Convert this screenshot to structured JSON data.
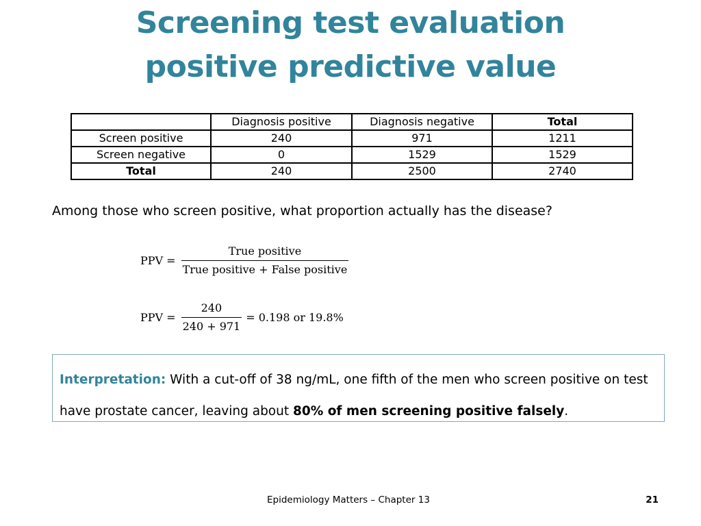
{
  "title": {
    "line1": "Screening test evaluation",
    "line2": "positive predictive value"
  },
  "table": {
    "headers": [
      "",
      "Diagnosis positive",
      "Diagnosis negative",
      "Total"
    ],
    "rows": [
      [
        "Screen positive",
        "240",
        "971",
        "1211"
      ],
      [
        "Screen negative",
        "0",
        "1529",
        "1529"
      ],
      [
        "Total",
        "240",
        "2500",
        "2740"
      ]
    ]
  },
  "question": "Among those who screen positive, what proportion actually has the disease?",
  "formula1": {
    "lhs": "PPV =",
    "numerator": "True positive",
    "denominator": "True positive + False positive"
  },
  "formula2": {
    "lhs": "PPV =",
    "numerator": "240",
    "denominator": "240 + 971",
    "result": "= 0.198 or 19.8%"
  },
  "interpretation": {
    "label": "Interpretation:",
    "text1": " With a cut-off of 38 ng/mL, one fifth of the men who screen positive on test have prostate cancer, leaving about ",
    "bold": "80% of men screening positive falsely",
    "text2": "."
  },
  "footer": {
    "text": "Epidemiology Matters – Chapter 13",
    "page": "21"
  }
}
